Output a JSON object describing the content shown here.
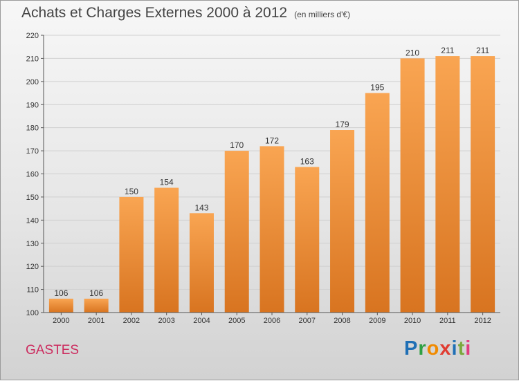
{
  "header": {
    "title": "Achats et Charges Externes 2000 à 2012",
    "subtitle": "(en milliers d'€)"
  },
  "footer": {
    "commune": "GASTES",
    "brand": "Proxiti",
    "brand_colors": [
      "#1f6fb5",
      "#2ea043",
      "#f08a00",
      "#e03c31",
      "#1f6fb5",
      "#7aa83c",
      "#e23b7d"
    ]
  },
  "chart_data": {
    "type": "bar",
    "categories": [
      "2000",
      "2001",
      "2002",
      "2003",
      "2004",
      "2005",
      "2006",
      "2007",
      "2008",
      "2009",
      "2010",
      "2011",
      "2012"
    ],
    "values": [
      106,
      106,
      150,
      154,
      143,
      170,
      172,
      163,
      179,
      195,
      210,
      211,
      211
    ],
    "ylim": [
      100,
      220
    ],
    "yticks": [
      100,
      110,
      120,
      130,
      140,
      150,
      160,
      170,
      180,
      190,
      200,
      210,
      220
    ],
    "grid": true,
    "bar_color_top": "#f9a552",
    "bar_color_bottom": "#d87420"
  }
}
